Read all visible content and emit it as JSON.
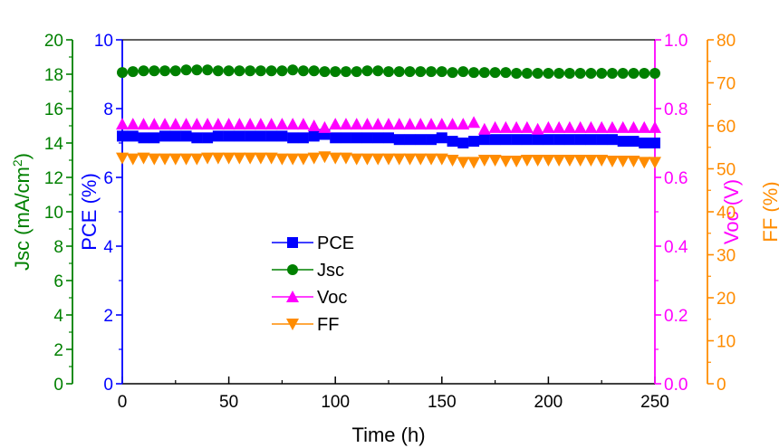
{
  "chart_data": {
    "type": "scatter",
    "xlabel": "Time (h)",
    "xlim": [
      0,
      250
    ],
    "xticks": [
      0,
      50,
      100,
      150,
      200,
      250
    ],
    "axes": {
      "pce": {
        "label": "PCE (%)",
        "lim": [
          0,
          10
        ],
        "ticks": [
          0,
          2,
          4,
          6,
          8,
          10
        ],
        "color": "#0000ff",
        "side": "left"
      },
      "jsc": {
        "label": "Jsc (mA/cm2)",
        "lim": [
          0,
          20
        ],
        "ticks": [
          0,
          2,
          4,
          6,
          8,
          10,
          12,
          14,
          16,
          18,
          20
        ],
        "color": "#008000",
        "side": "left"
      },
      "voc": {
        "label": "Voc (V)",
        "lim": [
          0.0,
          1.0
        ],
        "ticks": [
          "0.0",
          "0.2",
          "0.4",
          "0.6",
          "0.8",
          "1.0"
        ],
        "color": "#ff00ff",
        "side": "right"
      },
      "ff": {
        "label": "FF (%)",
        "lim": [
          0,
          80
        ],
        "ticks": [
          0,
          10,
          20,
          30,
          40,
          50,
          60,
          70,
          80
        ],
        "color": "#ff8c00",
        "side": "right"
      }
    },
    "x": [
      0,
      5,
      10,
      15,
      20,
      25,
      30,
      35,
      40,
      45,
      50,
      55,
      60,
      65,
      70,
      75,
      80,
      85,
      90,
      95,
      100,
      105,
      110,
      115,
      120,
      125,
      130,
      135,
      140,
      145,
      150,
      155,
      160,
      165,
      170,
      175,
      180,
      185,
      190,
      195,
      200,
      205,
      210,
      215,
      220,
      225,
      230,
      235,
      240,
      245,
      250
    ],
    "series": [
      {
        "name": "PCE",
        "axis": "pce",
        "marker": "square",
        "color": "#0000ff",
        "values": [
          7.2,
          7.2,
          7.15,
          7.15,
          7.2,
          7.2,
          7.2,
          7.15,
          7.15,
          7.2,
          7.2,
          7.2,
          7.2,
          7.2,
          7.2,
          7.2,
          7.15,
          7.15,
          7.2,
          7.25,
          7.15,
          7.15,
          7.15,
          7.15,
          7.15,
          7.15,
          7.1,
          7.1,
          7.1,
          7.1,
          7.15,
          7.05,
          7.0,
          7.05,
          7.1,
          7.1,
          7.1,
          7.1,
          7.1,
          7.1,
          7.1,
          7.1,
          7.1,
          7.1,
          7.1,
          7.1,
          7.1,
          7.05,
          7.05,
          7.0,
          7.0
        ]
      },
      {
        "name": "Jsc",
        "axis": "jsc",
        "marker": "circle",
        "color": "#008000",
        "values": [
          18.1,
          18.15,
          18.2,
          18.2,
          18.2,
          18.2,
          18.25,
          18.25,
          18.25,
          18.2,
          18.2,
          18.2,
          18.2,
          18.2,
          18.2,
          18.2,
          18.25,
          18.2,
          18.2,
          18.15,
          18.15,
          18.15,
          18.15,
          18.2,
          18.2,
          18.15,
          18.15,
          18.15,
          18.15,
          18.15,
          18.15,
          18.1,
          18.15,
          18.1,
          18.1,
          18.1,
          18.1,
          18.05,
          18.05,
          18.05,
          18.05,
          18.05,
          18.05,
          18.05,
          18.05,
          18.05,
          18.05,
          18.05,
          18.05,
          18.05,
          18.05
        ]
      },
      {
        "name": "Voc",
        "axis": "voc",
        "marker": "triangle-up",
        "color": "#ff00ff",
        "values": [
          0.755,
          0.755,
          0.755,
          0.755,
          0.755,
          0.755,
          0.755,
          0.755,
          0.755,
          0.755,
          0.755,
          0.755,
          0.755,
          0.755,
          0.755,
          0.755,
          0.755,
          0.755,
          0.75,
          0.745,
          0.755,
          0.755,
          0.755,
          0.755,
          0.755,
          0.755,
          0.755,
          0.755,
          0.755,
          0.755,
          0.755,
          0.755,
          0.755,
          0.76,
          0.74,
          0.745,
          0.745,
          0.745,
          0.745,
          0.74,
          0.745,
          0.745,
          0.745,
          0.745,
          0.745,
          0.745,
          0.745,
          0.745,
          0.745,
          0.745,
          0.745
        ]
      },
      {
        "name": "FF",
        "axis": "ff",
        "marker": "triangle-down",
        "color": "#ff8c00",
        "values": [
          52.5,
          52.3,
          52.5,
          52.3,
          52.3,
          52.3,
          52.3,
          52.3,
          52.5,
          52.5,
          52.5,
          52.5,
          52.5,
          52.5,
          52.5,
          52.3,
          52.3,
          52.3,
          52.5,
          52.8,
          52.5,
          52.5,
          52.3,
          52.3,
          52.3,
          52.3,
          52.3,
          52.3,
          52.3,
          52.3,
          52.3,
          52.0,
          51.5,
          51.5,
          52.0,
          52.0,
          51.8,
          51.8,
          52.0,
          52.0,
          52.0,
          52.0,
          52.0,
          52.0,
          52.0,
          52.0,
          51.8,
          51.8,
          51.8,
          51.5,
          51.5
        ]
      }
    ],
    "legend": {
      "placement": "center-left",
      "entries": [
        {
          "label": "PCE",
          "marker": "square",
          "color": "#0000ff"
        },
        {
          "label": "Jsc",
          "marker": "circle",
          "color": "#008000"
        },
        {
          "label": "Voc",
          "marker": "triangle-up",
          "color": "#ff00ff"
        },
        {
          "label": "FF",
          "marker": "triangle-down",
          "color": "#ff8c00"
        }
      ]
    },
    "grid": false
  }
}
